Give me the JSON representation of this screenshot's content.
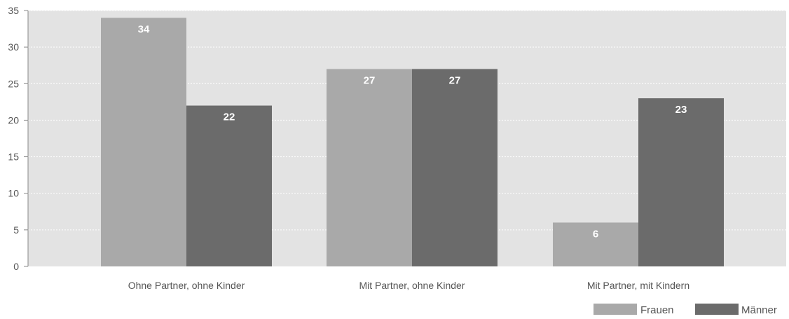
{
  "chart_data": {
    "type": "bar",
    "categories": [
      "Ohne Partner, ohne Kinder",
      "Mit Partner, ohne Kinder",
      "Mit Partner, mit Kindern"
    ],
    "series": [
      {
        "name": "Frauen",
        "values": [
          34,
          27,
          6
        ],
        "labels": [
          "34",
          "27",
          "6"
        ],
        "color": "#a9a9a9"
      },
      {
        "name": "Männer",
        "values": [
          22,
          27,
          23
        ],
        "labels": [
          "22",
          "27",
          "23"
        ],
        "color": "#6b6b6b"
      }
    ],
    "yticks": [
      0,
      5,
      10,
      15,
      20,
      25,
      30,
      35
    ],
    "ylim": [
      0,
      35
    ],
    "grid": true,
    "legend_position": "bottom-right",
    "plot_background": "#e3e3e3",
    "grid_color": "#ffffff",
    "axis_color": "#8a8a8a"
  }
}
